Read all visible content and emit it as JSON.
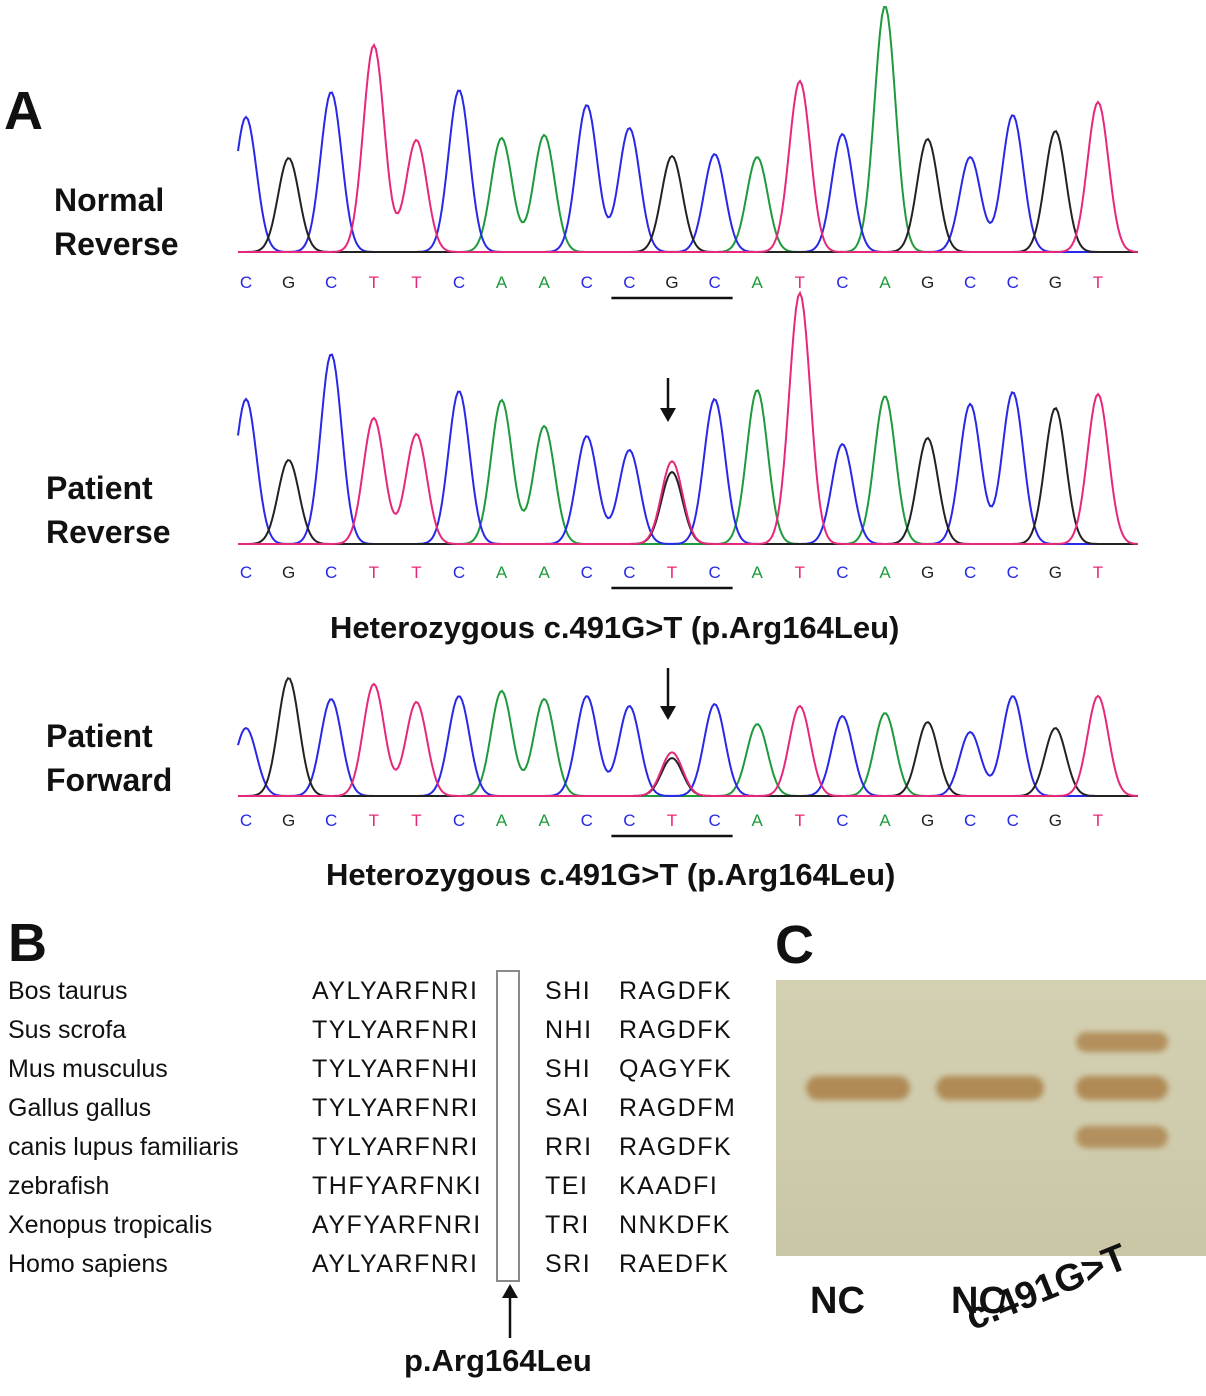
{
  "panelA": {
    "letter": "A",
    "traces": [
      {
        "label_line1": "Normal",
        "label_line2": "Reverse",
        "bases": "CGCTTCAACCGCATCAGCCGT",
        "caption": "",
        "mutant": false
      },
      {
        "label_line1": "Patient",
        "label_line2": "Reverse",
        "bases": "CGCTTCAACCTCATCAGCCGT",
        "caption": "Heterozygous c.491G>T (p.Arg164Leu)",
        "mutant": true
      },
      {
        "label_line1": "Patient",
        "label_line2": "Forward",
        "bases": "CGCTTCAACCTCATCAGCCGT",
        "caption": "Heterozygous c.491G>T (p.Arg164Leu)",
        "mutant": true
      }
    ],
    "base_colors": {
      "A": "#1e9a3c",
      "C": "#2828e6",
      "G": "#222222",
      "T": "#e6287a"
    }
  },
  "panelB": {
    "letter": "B",
    "rows": [
      {
        "species": "Bos taurus",
        "seq1": "AYLYARFNRI",
        "seq2": "SHI",
        "seq3": "RAGDFK"
      },
      {
        "species": "Sus scrofa",
        "seq1": "TYLYARFNRI",
        "seq2": "NHI",
        "seq3": "RAGDFK"
      },
      {
        "species": "Mus musculus",
        "seq1": "TYLYARFNHI",
        "seq2": "SHI",
        "seq3": "QAGYFK"
      },
      {
        "species": "Gallus gallus",
        "seq1": "TYLYARFNRI",
        "seq2": "SAI",
        "seq3": "RAGDFM"
      },
      {
        "species": "canis lupus familiaris",
        "seq1": "TYLYARFNRI",
        "seq2": "RRI",
        "seq3": "RAGDFK"
      },
      {
        "species": "zebrafish",
        "seq1": "THFYARFNKI",
        "seq2": "TEI",
        "seq3": "KAADFI"
      },
      {
        "species": "Xenopus tropicalis",
        "seq1": "AYFYARFNRI",
        "seq2": "TRI",
        "seq3": "NNKDFK"
      },
      {
        "species": "Homo sapiens",
        "seq1": "AYLYARFNRI",
        "seq2": "SRI",
        "seq3": "RAEDFK"
      }
    ],
    "arrow_label": "p.Arg164Leu"
  },
  "panelC": {
    "letter": "C",
    "lanes": [
      {
        "label": "NC"
      },
      {
        "label": "NC"
      },
      {
        "label": "c.491G>T"
      }
    ],
    "gel_color": "#cfccad",
    "band_color": "#b08a55"
  }
}
